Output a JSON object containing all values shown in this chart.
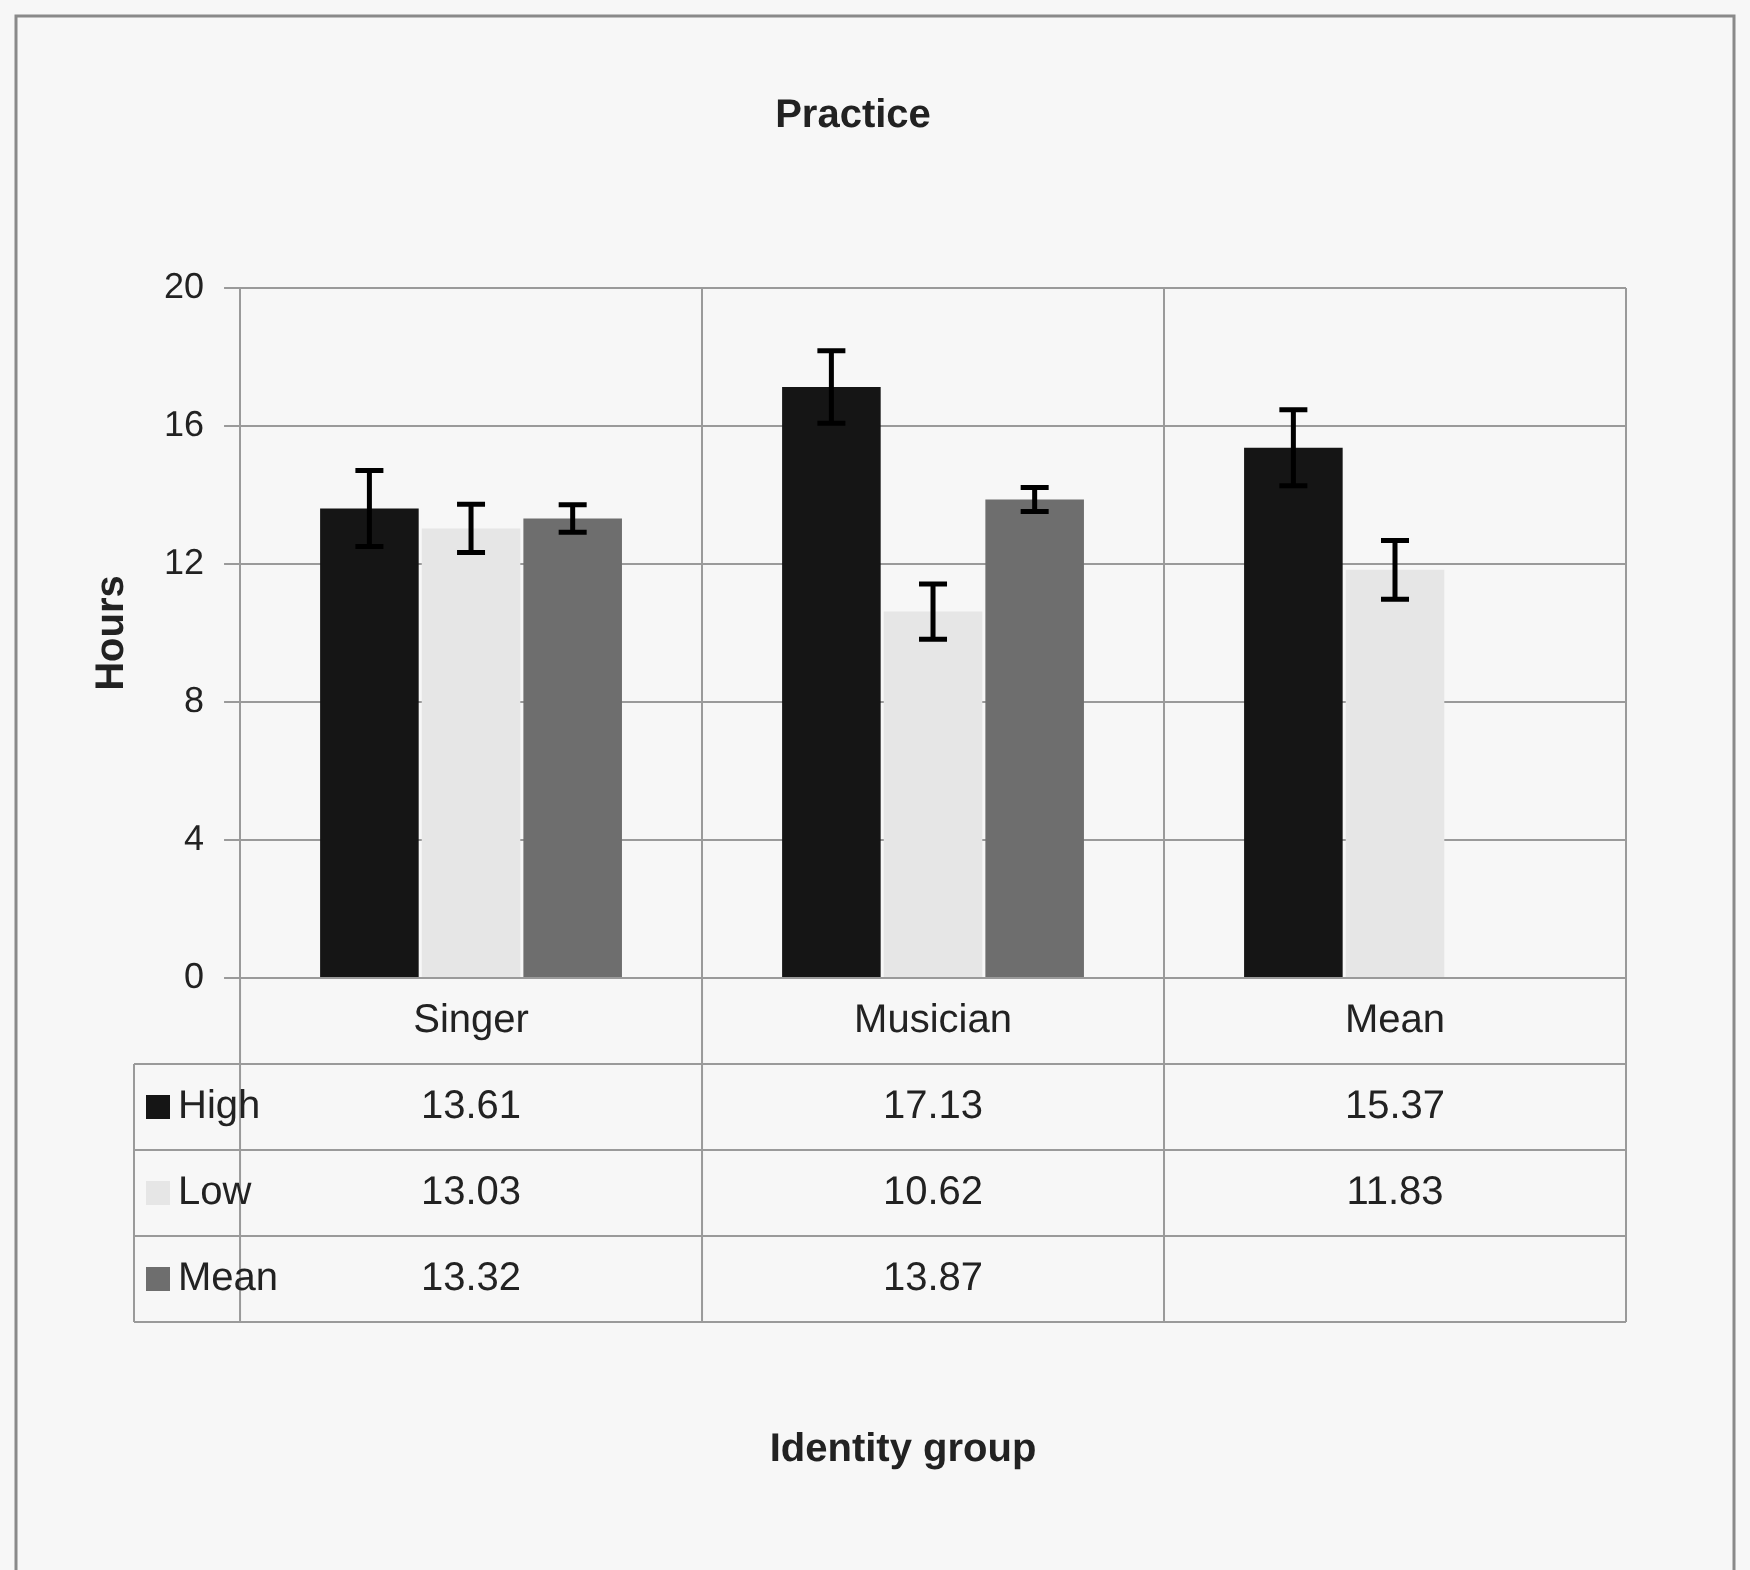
{
  "chart_data": {
    "type": "bar",
    "title": "Practice",
    "ylabel": "Hours",
    "annotations": [
      "Identity group"
    ],
    "categories": [
      "Singer",
      "Musician",
      "Mean"
    ],
    "series": [
      {
        "name": "High",
        "color": "#151515",
        "values": [
          13.61,
          17.13,
          15.37
        ],
        "errors": [
          1.1,
          1.05,
          1.1
        ]
      },
      {
        "name": "Low",
        "color": "#e6e6e6",
        "values": [
          13.03,
          10.62,
          11.83
        ],
        "errors": [
          0.7,
          0.8,
          0.85
        ]
      },
      {
        "name": "Mean",
        "color": "#6e6e6e",
        "values": [
          13.32,
          13.87,
          null
        ],
        "errors": [
          0.4,
          0.35,
          null
        ]
      }
    ],
    "ylim": [
      0,
      20
    ],
    "yticks": [
      0,
      4,
      8,
      12,
      16,
      20
    ],
    "grid": true,
    "legend": "bottom left",
    "data_labels": true
  }
}
